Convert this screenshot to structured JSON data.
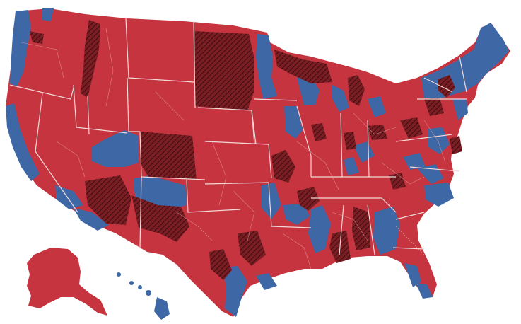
{
  "map": {
    "legend_colors": {
      "republican": "#c5343f",
      "democratic": "#3e67a6",
      "republican_flip": "#7a1e24"
    },
    "land_color": "#c5343f",
    "background": "#ffffff"
  }
}
